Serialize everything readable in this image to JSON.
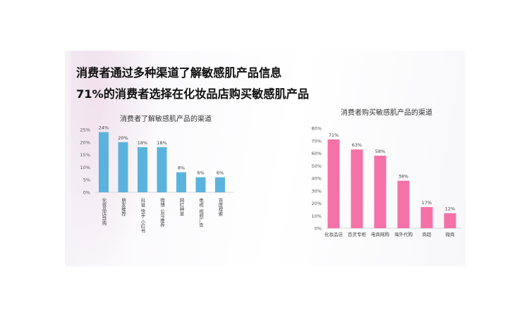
{
  "headlines": {
    "line1": "消费者通过多种渠道了解敏感肌产品信息",
    "line2": "71%的消费者选择在化妆品店购买敏感肌产品"
  },
  "chart_data": [
    {
      "type": "bar",
      "title": "消费者了解敏感肌产品的渠道",
      "categories": [
        "化妆品店导购",
        "朋友推荐",
        "抖音 快手 小红书",
        "微博 公号推荐",
        "网红种草",
        "电视 视频广告",
        "百度搜索"
      ],
      "values": [
        24,
        20,
        18,
        18,
        8,
        6,
        6
      ],
      "data_labels": [
        "24%",
        "20%",
        "18%",
        "18%",
        "8%",
        "6%",
        "6%"
      ],
      "ylim": [
        0,
        25
      ],
      "yticks": [
        "0%",
        "5%",
        "10%",
        "15%",
        "20%",
        "25%"
      ],
      "grid": false,
      "color": "#5bb3dd",
      "category_label_orientation": "vertical"
    },
    {
      "type": "bar",
      "title": "消费者购买敏感肌产品的渠道",
      "categories": [
        "化妆品店",
        "百货专柜",
        "电商网购",
        "海外代购",
        "商超",
        "微商"
      ],
      "values": [
        71,
        63,
        58,
        38,
        17,
        12
      ],
      "data_labels": [
        "71%",
        "63%",
        "58%",
        "38%",
        "17%",
        "12%"
      ],
      "ylim": [
        0,
        80
      ],
      "yticks": [
        "0%",
        "10%",
        "20%",
        "30%",
        "40%",
        "50%",
        "60%",
        "70%",
        "80%"
      ],
      "grid": false,
      "color": "#f472a8"
    }
  ]
}
